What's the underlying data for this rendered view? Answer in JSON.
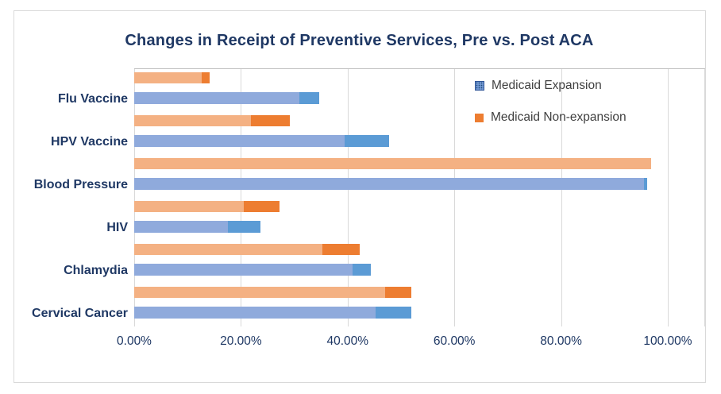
{
  "chart_data": {
    "type": "bar",
    "orientation": "horizontal",
    "title": "Changes in Receipt of Preventive Services, Pre vs. Post ACA",
    "categories": [
      "Flu Vaccine",
      "HPV Vaccine",
      "Blood Pressure",
      "HIV",
      "Chlamydia",
      "Cervical Cancer"
    ],
    "series": [
      {
        "name": "Medicaid Expansion",
        "pre": [
          30.9,
          39.4,
          95.6,
          17.5,
          40.9,
          45.3
        ],
        "post": [
          34.6,
          47.8,
          96.1,
          23.7,
          44.4,
          51.9
        ],
        "color_pre": "#8FAADC",
        "color_post_tip": "#5B9BD5"
      },
      {
        "name": "Medicaid Non-expansion",
        "pre": [
          12.7,
          21.9,
          96.9,
          20.6,
          35.3,
          47.0
        ],
        "post": [
          14.2,
          29.1,
          96.9,
          27.3,
          42.2,
          51.9
        ],
        "color_pre": "#F4B183",
        "color_post_tip": "#ED7D31"
      }
    ],
    "segment_meaning": "light segment = pre-ACA rate, dark tip extends to post-ACA rate",
    "xlabel": "",
    "ylabel": "",
    "x_axis": {
      "ticks": [
        "0.00%",
        "20.00%",
        "40.00%",
        "60.00%",
        "80.00%",
        "100.00%"
      ],
      "tick_values": [
        0,
        20,
        40,
        60,
        80,
        100
      ],
      "min": 0,
      "max": 100
    },
    "grid": true,
    "legend_position": "top-right-inside"
  },
  "colors": {
    "title_text": "#1F3864",
    "axis_text": "#1F3864",
    "category_text": "#1F3864",
    "legend_text": "#404040",
    "gridline": "#D9D9D9",
    "plot_top_line": "#BFBFBF",
    "chart_border": "#D9D9D9",
    "background": "#FFFFFF"
  }
}
